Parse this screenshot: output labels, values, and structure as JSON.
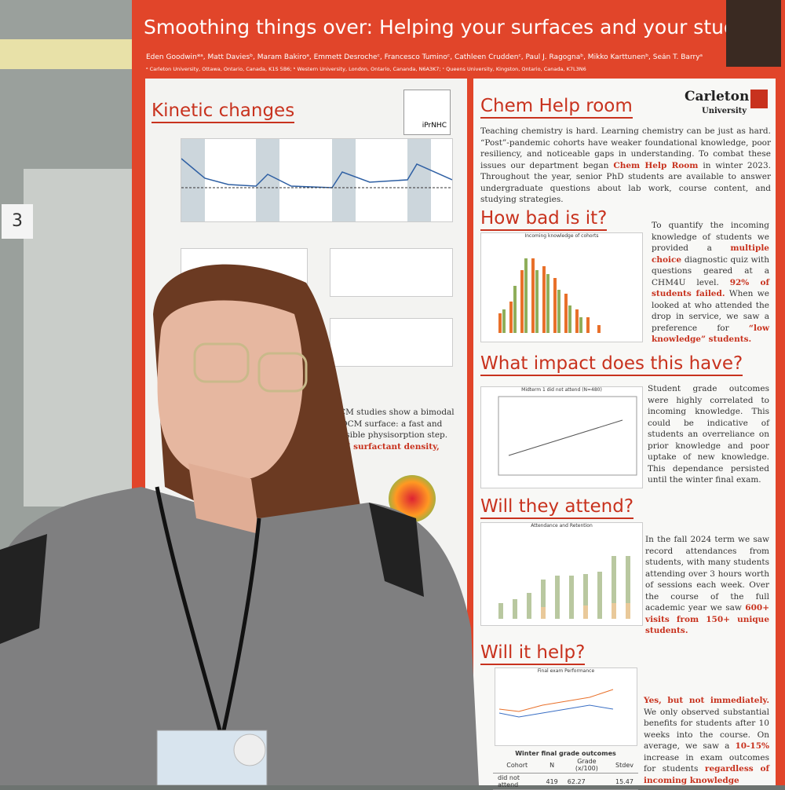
{
  "room_sign": "3",
  "poster": {
    "title": "Smoothing things over: Helping your surfaces and your students",
    "authors": "Eden Goodwin*ᵃ, Matt Daviesᵇ, Maram Bakiroᵃ, Emmett Desrocheᶜ, Francesco Tuminoᶜ, Cathleen Cruddenᶜ, Paul J. Ragognaᵇ, Mikko Karttunenᵇ, Seán T. Barryᵃ",
    "affiliations": "ᵃ Carleton University, Ottawa, Ontario, Canada, K1S 5B6; ᵇ Western University, London, Ontario, Cananda, N6A3K7; ᶜ Queens University, Kingston, Ontario, Canada, K7L3N6",
    "logo": [
      "Carleton",
      "University"
    ],
    "kinetic": {
      "heading": "Kinetic changes",
      "molecule": "iPrNHC",
      "fragments": [
        "ance QCM studies show a bimodal",
        "coated QCM surface: a fast and",
        "nd reversible physisorption step.",
        "nisorbed surfactant density,"
      ]
    },
    "chem_help": {
      "heading": "Chem Help room",
      "body": [
        "Teaching chemistry is hard. Learning chemistry can be just as hard. “Post”-pandemic cohorts have weaker foundational knowledge, poor resiliency, and noticeable gaps in understanding. To combat these issues our department began ",
        "Chem Help Room",
        " in winter 2023. Throughout the year, senior PhD students are available to answer undergraduate questions about lab work, course content, and studying strategies."
      ]
    },
    "how_bad": {
      "heading": "How bad is it?",
      "chart_title": "Incoming knowledge of cohorts",
      "body": [
        "To quantify the incoming knowledge of students we provided a ",
        "multiple choice",
        " diagnostic quiz with questions geared at a CHM4U level. ",
        "92% of students failed.",
        " When we looked at who attended the drop in service, we saw a preference for ",
        "“low knowledge” students."
      ]
    },
    "impact": {
      "heading": "What impact does this have?",
      "chart_title": "Midterm 1 did not attend (N=480)",
      "body": [
        "Student grade outcomes were highly correlated to incoming knowledge. This could be indicative of students an overreliance on prior knowledge and poor uptake of new knowledge. This dependance persisted until the winter final exam."
      ]
    },
    "attend": {
      "heading": "Will they attend?",
      "chart_title": "Attendance and Retention",
      "body": [
        "In the fall 2024 term we saw record attendances from students, with many students attending over 3 hours worth of sessions each week. Over the course of the full academic year we saw ",
        "600+ visits from 150+ unique students."
      ]
    },
    "help": {
      "heading": "Will it help?",
      "chart_title": "Final exam Performance",
      "body": [
        "Yes, but not immediately.",
        " We only observed substantial benefits for students after 10 weeks into the course. On average, we saw a ",
        "10-15%",
        " increase in exam outcomes for students ",
        "regardless of incoming knowledge"
      ]
    },
    "table": {
      "title": "Winter final grade outcomes",
      "header": [
        "Cohort",
        "N",
        "Grade (x/100)",
        "Stdev"
      ],
      "rows": [
        [
          "did not attend",
          "419",
          "62.27",
          "15.47"
        ]
      ]
    }
  }
}
